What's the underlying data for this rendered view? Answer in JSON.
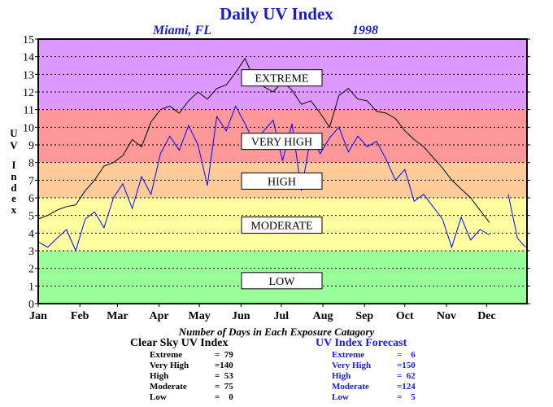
{
  "chart_data": {
    "type": "line",
    "title": "Daily UV Index",
    "subtitle_location": "Miami, FL",
    "subtitle_year": "1998",
    "ylabel": "UV Index",
    "xlabel": "",
    "ylim": [
      0,
      15
    ],
    "yticks": [
      "0",
      "1",
      "2",
      "3",
      "4",
      "5",
      "6",
      "7",
      "8",
      "9",
      "10",
      "11",
      "12",
      "13",
      "14",
      "15"
    ],
    "months": [
      "Jan",
      "Feb",
      "Mar",
      "Apr",
      "May",
      "Jun",
      "Jul",
      "Aug",
      "Sep",
      "Oct",
      "Nov",
      "Dec"
    ],
    "grid": true,
    "bands": [
      {
        "label": "LOW",
        "from": 0,
        "to": 3,
        "color": "#99ff99",
        "label_value": 1.3
      },
      {
        "label": "MODERATE",
        "from": 3,
        "to": 6,
        "color": "#ffffa0",
        "label_value": 4.45
      },
      {
        "label": "HIGH",
        "from": 6,
        "to": 8,
        "color": "#ffcc99",
        "label_value": 6.95
      },
      {
        "label": "VERY HIGH",
        "from": 8,
        "to": 11,
        "color": "#ff9999",
        "label_value": 9.2
      },
      {
        "label": "EXTREME",
        "from": 11,
        "to": 15,
        "color": "#dd99ff",
        "label_value": 12.8
      }
    ],
    "series": [
      {
        "name": "Clear Sky UV Index",
        "color": "#000000",
        "x": [
          1,
          8,
          15,
          22,
          29,
          36,
          43,
          50,
          57,
          64,
          71,
          78,
          85,
          92,
          99,
          106,
          113,
          120,
          127,
          134,
          141,
          148,
          155,
          162,
          169,
          176,
          183,
          190,
          197,
          204,
          211,
          218,
          225,
          232,
          239,
          246,
          253,
          260,
          267,
          274,
          281,
          288,
          295,
          302,
          309,
          316,
          323,
          330,
          337
        ],
        "values": [
          4.8,
          5.0,
          5.3,
          5.5,
          5.6,
          6.4,
          7.0,
          7.8,
          8.0,
          8.4,
          9.3,
          8.9,
          10.3,
          11.0,
          11.2,
          10.8,
          11.5,
          12.0,
          11.6,
          12.2,
          12.4,
          13.1,
          13.9,
          12.7,
          12.3,
          12.0,
          12.6,
          12.1,
          11.3,
          11.5,
          10.8,
          10.0,
          11.8,
          12.2,
          11.6,
          11.5,
          10.9,
          10.8,
          10.5,
          9.8,
          9.3,
          8.9,
          8.3,
          7.7,
          7.0,
          6.5,
          6.0,
          5.3,
          4.6
        ]
      },
      {
        "name": "UV Index Forecast",
        "color": "#0000ff",
        "x": [
          1,
          8,
          15,
          22,
          29,
          36,
          43,
          50,
          57,
          64,
          71,
          78,
          85,
          92,
          99,
          106,
          113,
          120,
          127,
          134,
          141,
          148,
          155,
          162,
          169,
          176,
          183,
          190,
          197,
          204,
          211,
          218,
          225,
          232,
          239,
          246,
          253,
          260,
          267,
          274,
          281,
          288,
          295,
          302,
          309,
          316,
          323,
          330,
          337,
          344,
          351,
          358,
          364
        ],
        "values": [
          3.5,
          3.2,
          3.7,
          4.2,
          3.0,
          4.8,
          5.2,
          4.3,
          6.0,
          6.8,
          5.4,
          7.2,
          6.2,
          8.5,
          9.5,
          8.7,
          10.1,
          9.0,
          6.7,
          10.6,
          9.8,
          11.2,
          10.2,
          9.1,
          9.8,
          10.4,
          8.1,
          10.2,
          6.4,
          9.5,
          8.5,
          9.4,
          10.0,
          8.6,
          9.5,
          8.9,
          9.2,
          8.2,
          7.0,
          7.6,
          5.8,
          6.2,
          5.5,
          4.8,
          3.2,
          4.9,
          3.6,
          4.2,
          3.9,
          null,
          6.2,
          3.7,
          3.2
        ]
      }
    ]
  },
  "stats_caption": "Number of Days in Each Exposure Catagory",
  "clear_sky": {
    "title": "Clear Sky UV Index",
    "rows": [
      {
        "cat": "Extreme",
        "val": "=  79"
      },
      {
        "cat": "Very High",
        "val": "=140"
      },
      {
        "cat": "High",
        "val": "=  53"
      },
      {
        "cat": "Moderate",
        "val": "=  75"
      },
      {
        "cat": "Low",
        "val": "=    0"
      }
    ]
  },
  "forecast": {
    "title": "UV Index Forecast",
    "rows": [
      {
        "cat": "Extreme",
        "val": "=    6"
      },
      {
        "cat": "Very High",
        "val": "=150"
      },
      {
        "cat": "High",
        "val": "=  62"
      },
      {
        "cat": "Moderate",
        "val": "=124"
      },
      {
        "cat": "Low",
        "val": "=    5"
      }
    ]
  }
}
